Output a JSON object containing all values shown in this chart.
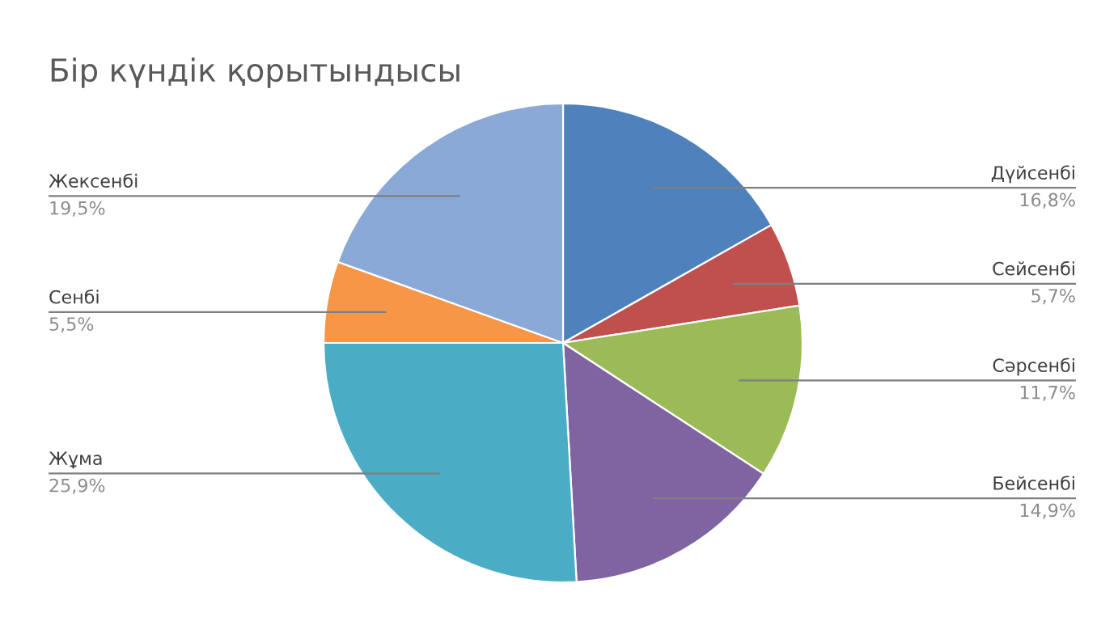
{
  "chart_data": {
    "type": "pie",
    "title": "Бір күндік қорытындысы",
    "categories": [
      "Дүйсенбі",
      "Сейсенбі",
      "Сәрсенбі",
      "Бейсенбі",
      "Жұма",
      "Сенбі",
      "Жексенбі"
    ],
    "values": [
      16.8,
      5.7,
      11.7,
      14.9,
      25.9,
      5.5,
      19.5
    ],
    "colors": [
      "#4f81bd",
      "#c0504d",
      "#9bbb59",
      "#8064a2",
      "#4bacc6",
      "#f79646",
      "#8aa9d6"
    ],
    "value_labels": [
      "16,8%",
      "5,7%",
      "11,7%",
      "14,9%",
      "25,9%",
      "5,5%",
      "19,5%"
    ],
    "legend": false
  }
}
